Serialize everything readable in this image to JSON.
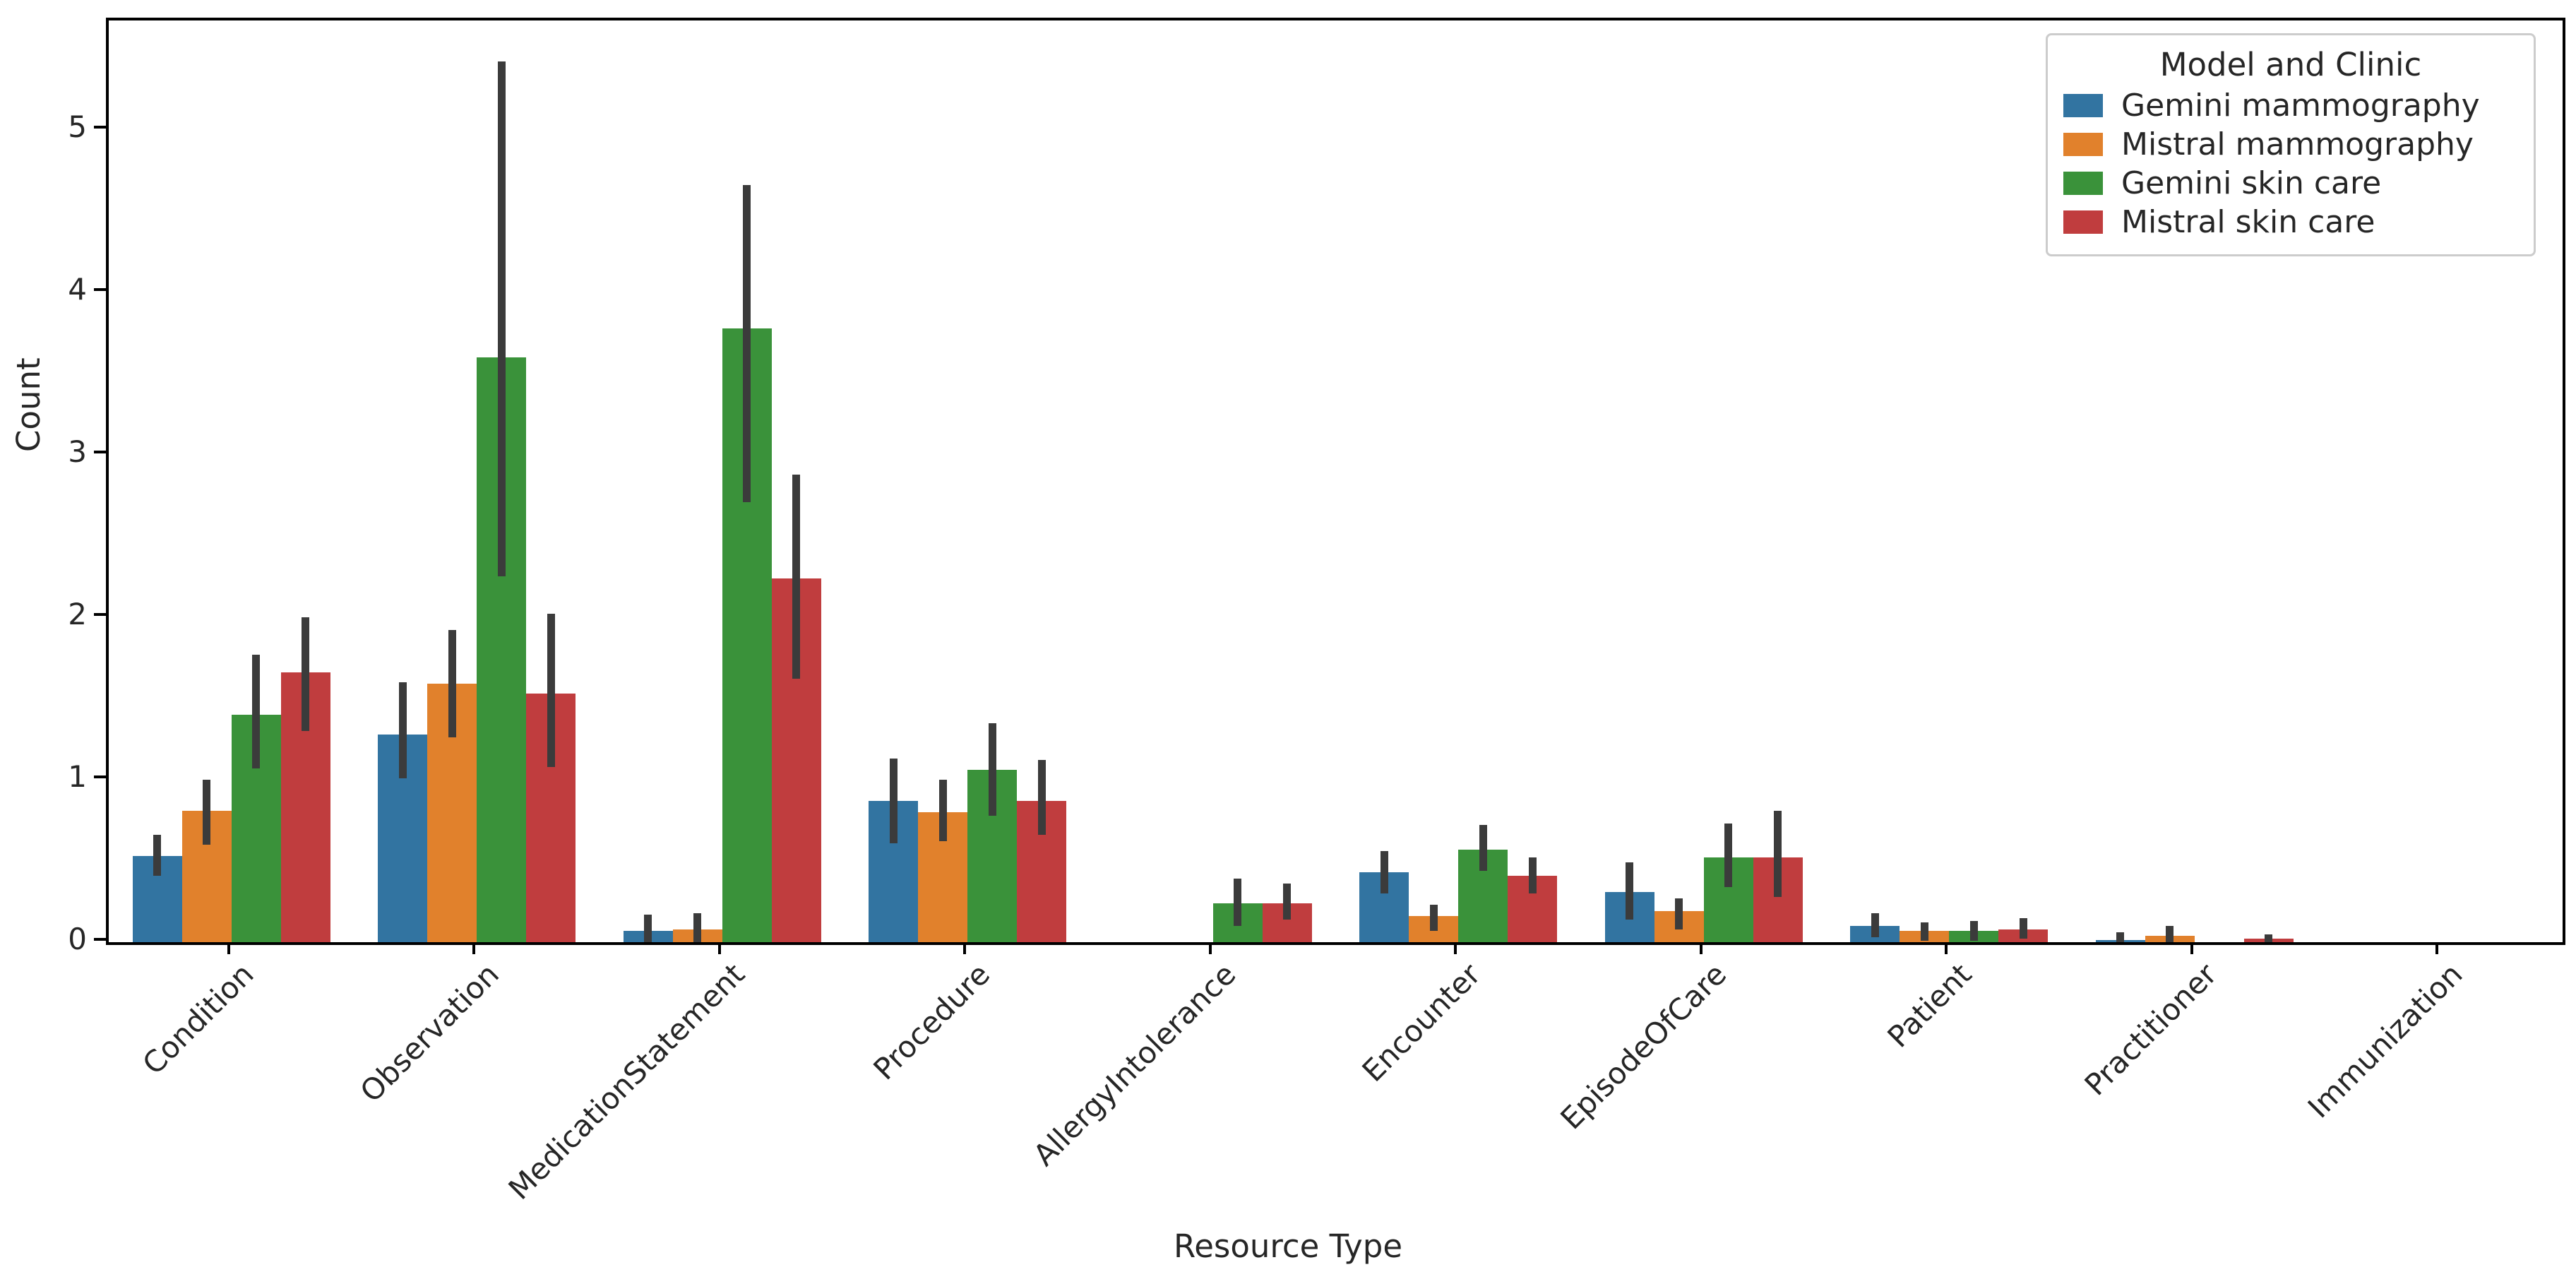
{
  "chart_data": {
    "type": "bar",
    "title": "",
    "xlabel": "Resource Type",
    "ylabel": "Count",
    "ylim": [
      0,
      5.674
    ],
    "yticks": [
      "0",
      "1",
      "2",
      "3",
      "4",
      "5"
    ],
    "grid": false,
    "legend": {
      "title": "Model and Clinic",
      "position": "upper right"
    },
    "error_bar_color": "#3b3b3b",
    "categories": [
      "Condition",
      "Observation",
      "MedicationStatement",
      "Procedure",
      "AllergyIntolerance",
      "Encounter",
      "EpisodeOfCare",
      "Patient",
      "Practitioner",
      "Immunization"
    ],
    "series": [
      {
        "name": "Gemini mammography",
        "color": "#3274a1",
        "values": [
          0.53,
          1.28,
          0.07,
          0.87,
          0,
          0.43,
          0.31,
          0.1,
          0.015,
          0
        ],
        "errors": [
          [
            0.41,
            0.66
          ],
          [
            1.01,
            1.6
          ],
          [
            0,
            0.17
          ],
          [
            0.61,
            1.13
          ],
          null,
          [
            0.3,
            0.56
          ],
          [
            0.14,
            0.49
          ],
          [
            0.03,
            0.18
          ],
          [
            0,
            0.06
          ],
          null
        ]
      },
      {
        "name": "Mistral mammography",
        "color": "#e1812c",
        "values": [
          0.81,
          1.59,
          0.08,
          0.8,
          0,
          0.16,
          0.19,
          0.07,
          0.04,
          0
        ],
        "errors": [
          [
            0.6,
            1.0
          ],
          [
            1.26,
            1.92
          ],
          [
            0,
            0.18
          ],
          [
            0.62,
            1.0
          ],
          null,
          [
            0.07,
            0.23
          ],
          [
            0.08,
            0.27
          ],
          [
            0.01,
            0.12
          ],
          [
            0,
            0.1
          ],
          null
        ]
      },
      {
        "name": "Gemini skin care",
        "color": "#3a923a",
        "values": [
          1.4,
          3.6,
          3.78,
          1.06,
          0.24,
          0.57,
          0.52,
          0.07,
          0,
          0
        ],
        "errors": [
          [
            1.07,
            1.77
          ],
          [
            2.25,
            5.42
          ],
          [
            2.71,
            4.66
          ],
          [
            0.78,
            1.35
          ],
          [
            0.1,
            0.39
          ],
          [
            0.44,
            0.72
          ],
          [
            0.34,
            0.73
          ],
          [
            0.01,
            0.13
          ],
          null,
          null
        ]
      },
      {
        "name": "Mistral skin care",
        "color": "#c03d3e",
        "values": [
          1.66,
          1.53,
          2.24,
          0.87,
          0.24,
          0.41,
          0.52,
          0.08,
          0.02,
          0
        ],
        "errors": [
          [
            1.3,
            2.0
          ],
          [
            1.08,
            2.02
          ],
          [
            1.62,
            2.88
          ],
          [
            0.66,
            1.12
          ],
          [
            0.14,
            0.36
          ],
          [
            0.3,
            0.52
          ],
          [
            0.28,
            0.81
          ],
          [
            0.02,
            0.15
          ],
          [
            0,
            0.05
          ],
          null
        ]
      }
    ]
  }
}
